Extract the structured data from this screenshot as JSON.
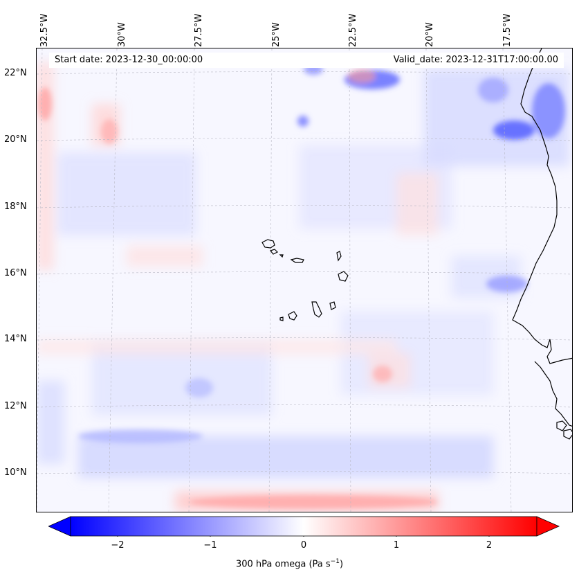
{
  "map": {
    "start_date_text": "Start date: 2023-12-30_00:00:00",
    "valid_date_text": "Valid_date: 2023-12-31T17:00:00.00",
    "lon_labels": [
      "32.5°W",
      "30°W",
      "27.5°W",
      "25°W",
      "22.5°W",
      "20°W",
      "17.5°W"
    ],
    "lat_labels": [
      "22°N",
      "20°N",
      "18°N",
      "16°N",
      "14°N",
      "12°N",
      "10°N"
    ],
    "field_colors": {
      "background": "#f7f7ff",
      "coast": "#000000",
      "negative": "#0000ff",
      "positive": "#ff0000",
      "gridline": "#b0b0b0"
    }
  },
  "colorbar": {
    "label_main": "300 hPa omega (Pa s",
    "label_exponent": "−1",
    "label_close": ")",
    "ticks": [
      "−2",
      "−1",
      "0",
      "1",
      "2"
    ],
    "range": [
      -2.6,
      2.6
    ],
    "extend": "both"
  }
}
